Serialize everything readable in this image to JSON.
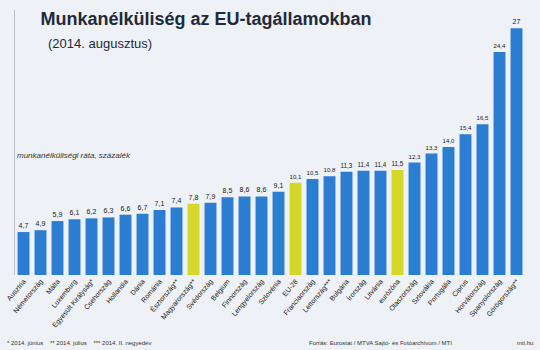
{
  "chart_data": {
    "type": "bar",
    "title": "Munkanélküliség az EU-tagállamokban",
    "subtitle": "(2014. augusztus)",
    "y_label": "munkanélküliségi ráta, százalék",
    "categories": [
      "Ausztria",
      "Németország",
      "Málta",
      "Luxemburg",
      "Egyesült Királyság*",
      "Csehország",
      "Hollandia",
      "Dánia",
      "Románia",
      "Észtország**",
      "Magyarország**",
      "Svédország",
      "Belgium",
      "Finnország",
      "Lengyelország",
      "Szlovénia",
      "EU-28",
      "Franciaország",
      "Lettország***",
      "Bulgária",
      "Írország",
      "Litvánia",
      "eurózóna",
      "Olaszország",
      "Szlovákia",
      "Portugália",
      "Ciprus",
      "Horvátország",
      "Spanyolország",
      "Görögország**"
    ],
    "values": [
      4.7,
      4.9,
      5.9,
      6.1,
      6.2,
      6.3,
      6.6,
      6.7,
      7.1,
      7.4,
      7.8,
      7.9,
      8.5,
      8.6,
      8.6,
      9.1,
      10.1,
      10.5,
      10.8,
      11.3,
      11.4,
      11.4,
      11.5,
      12.3,
      13.3,
      14.0,
      15.4,
      16.5,
      24.4,
      27
    ],
    "value_labels": [
      "4,7",
      "4,9",
      "5,9",
      "6,1",
      "6,2",
      "6,3",
      "6,6",
      "6,7",
      "7,1",
      "7,4",
      "7,8",
      "7,9",
      "8,5",
      "8,6",
      "8,6",
      "9,1",
      "10,1",
      "10,5",
      "10,8",
      "11,3",
      "11,4",
      "11,4",
      "11,5",
      "12,3",
      "13,3",
      "14,0",
      "15,4",
      "16,5",
      "24,4",
      "27"
    ],
    "colors": [
      "#2a7dd1",
      "#2a7dd1",
      "#2a7dd1",
      "#2a7dd1",
      "#2a7dd1",
      "#2a7dd1",
      "#2a7dd1",
      "#2a7dd1",
      "#2a7dd1",
      "#2a7dd1",
      "#d6d829",
      "#2a7dd1",
      "#2a7dd1",
      "#2a7dd1",
      "#2a7dd1",
      "#2a7dd1",
      "#d6d829",
      "#2a7dd1",
      "#2a7dd1",
      "#2a7dd1",
      "#2a7dd1",
      "#2a7dd1",
      "#d6d829",
      "#2a7dd1",
      "#2a7dd1",
      "#2a7dd1",
      "#2a7dd1",
      "#2a7dd1",
      "#2a7dd1",
      "#2a7dd1"
    ],
    "data_labels": true,
    "ylim": [
      0,
      29
    ],
    "yticks": [],
    "tick_labels": "x",
    "grid": false,
    "footnotes": [
      "* 2014. június",
      "** 2014. július",
      "*** 2014. II. negyedév"
    ],
    "source": "Forrás: Eurostat / MTVA Sajtó- és Fotóarchívum / MTI",
    "site": "mti.hu"
  }
}
